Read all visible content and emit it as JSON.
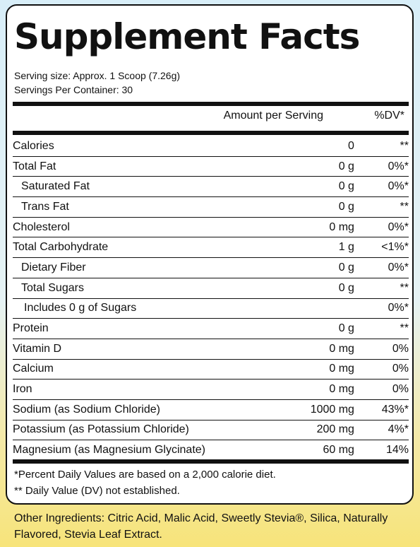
{
  "title": "Supplement Facts",
  "serving_size": "Serving size: Approx. 1 Scoop (7.26g)",
  "servings_per_container": "Servings Per Container: 30",
  "header": {
    "amount": "Amount per Serving",
    "dv": "%DV*"
  },
  "rows": [
    {
      "name": "Calories",
      "amount": "0",
      "dv": "**",
      "indent": 0
    },
    {
      "name": "Total Fat",
      "amount": "0 g",
      "dv": "0%*",
      "indent": 0
    },
    {
      "name": "Saturated Fat",
      "amount": "0 g",
      "dv": "0%*",
      "indent": 1
    },
    {
      "name": "Trans Fat",
      "amount": "0 g",
      "dv": "**",
      "indent": 1
    },
    {
      "name": "Cholesterol",
      "amount": "0 mg",
      "dv": "0%*",
      "indent": 0
    },
    {
      "name": "Total Carbohydrate",
      "amount": "1 g",
      "dv": "<1%*",
      "indent": 0
    },
    {
      "name": "Dietary Fiber",
      "amount": "0 g",
      "dv": "0%*",
      "indent": 1
    },
    {
      "name": "Total Sugars",
      "amount": "0 g",
      "dv": "**",
      "indent": 1
    },
    {
      "name": "Includes 0 g of Sugars",
      "amount": "",
      "dv": "0%*",
      "indent": 2
    },
    {
      "name": "Protein",
      "amount": "0 g",
      "dv": "**",
      "indent": 0
    },
    {
      "name": "Vitamin D",
      "amount": "0 mg",
      "dv": "0%",
      "indent": 0
    },
    {
      "name": "Calcium",
      "amount": "0 mg",
      "dv": "0%",
      "indent": 0
    },
    {
      "name": "Iron",
      "amount": "0 mg",
      "dv": "0%",
      "indent": 0
    },
    {
      "name": "Sodium (as Sodium Chloride)",
      "amount": "1000 mg",
      "dv": "43%*",
      "indent": 0
    },
    {
      "name": "Potassium (as Potassium Chloride)",
      "amount": "200 mg",
      "dv": "4%*",
      "indent": 0
    },
    {
      "name": "Magnesium (as Magnesium Glycinate)",
      "amount": "60 mg",
      "dv": "14%",
      "indent": 0
    }
  ],
  "footnote1": "*Percent Daily Values are based on a 2,000 calorie diet.",
  "footnote2": "** Daily Value (DV) not established.",
  "other_ingredients": "Other Ingredients: Citric Acid, Malic Acid, Sweetly Stevia®, Silica, Naturally Flavored, Stevia Leaf Extract."
}
